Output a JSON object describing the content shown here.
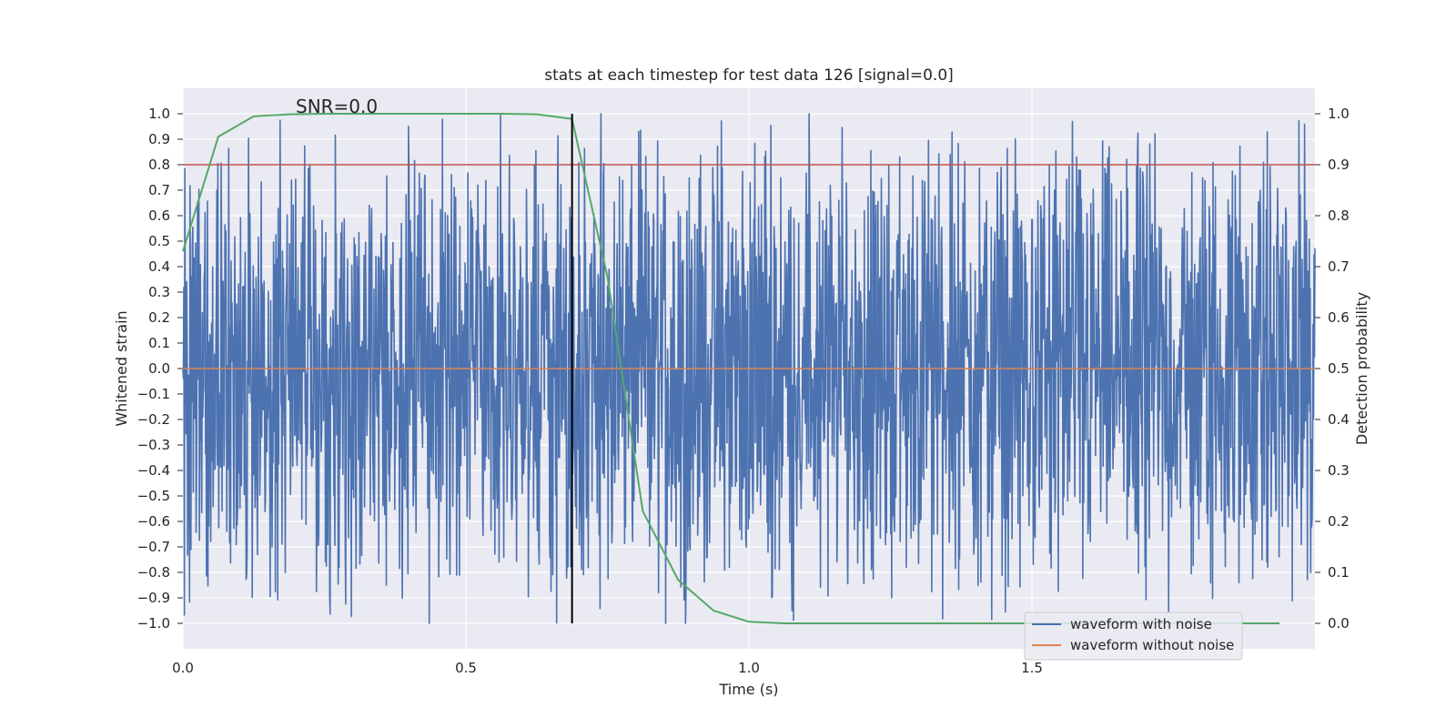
{
  "chart_data": {
    "type": "line",
    "title": "stats at each timestep for test data 126 [signal=0.0]",
    "annotation": "SNR=0.0",
    "xlabel": "Time (s)",
    "ylabel_left": "Whitened strain",
    "ylabel_right": "Detection probability",
    "xlim": [
      0.0,
      2.0
    ],
    "ylim_left": [
      -1.1,
      1.1
    ],
    "ylim_right": [
      -0.05,
      1.05
    ],
    "xticks": [
      "0.0",
      "0.5",
      "1.0",
      "1.5"
    ],
    "xtick_values": [
      0.0,
      0.5,
      1.0,
      1.5
    ],
    "yticks_left": [
      "1.0",
      "0.9",
      "0.8",
      "0.7",
      "0.6",
      "0.5",
      "0.4",
      "0.3",
      "0.2",
      "0.1",
      "0.0",
      "−0.1",
      "−0.2",
      "−0.3",
      "−0.4",
      "−0.5",
      "−0.6",
      "−0.7",
      "−0.8",
      "−0.9",
      "−1.0"
    ],
    "ytick_values_left": [
      1.0,
      0.9,
      0.8,
      0.7,
      0.6,
      0.5,
      0.4,
      0.3,
      0.2,
      0.1,
      0.0,
      -0.1,
      -0.2,
      -0.3,
      -0.4,
      -0.5,
      -0.6,
      -0.7,
      -0.8,
      -0.9,
      -1.0
    ],
    "yticks_right": [
      "1.0",
      "0.9",
      "0.8",
      "0.7",
      "0.6",
      "0.5",
      "0.4",
      "0.3",
      "0.2",
      "0.1",
      "0.0"
    ],
    "ytick_values_right": [
      1.0,
      0.9,
      0.8,
      0.7,
      0.6,
      0.5,
      0.4,
      0.3,
      0.2,
      0.1,
      0.0
    ],
    "grid": true,
    "legend_position": "bottom-right",
    "colors": {
      "noise": "#4c72b0",
      "clean": "#dd8452",
      "probability": "#55a868",
      "threshold": "#c44e52",
      "marker": "#000000",
      "plot_bg": "#eaeaf2",
      "grid": "#ffffff"
    },
    "series": [
      {
        "name": "waveform with noise",
        "axis": "left",
        "description_values": "whitened noise, roughly uniform in [-1, 1]",
        "time_range": [
          0.0,
          2.0
        ]
      },
      {
        "name": "waveform without noise",
        "axis": "left",
        "x": [
          0.0,
          2.0
        ],
        "values": [
          0.0,
          0.0
        ]
      },
      {
        "name": "detection probability",
        "axis": "right",
        "x": [
          0.0,
          0.0625,
          0.125,
          0.1875,
          0.25,
          0.3125,
          0.375,
          0.4375,
          0.5,
          0.5625,
          0.625,
          0.6875,
          0.75,
          0.8125,
          0.875,
          0.9375,
          1.0,
          1.0625,
          1.125,
          1.1875,
          1.25,
          1.3125,
          1.375,
          1.4375,
          1.5,
          1.5625,
          1.625,
          1.6875,
          1.75,
          1.8125,
          1.875,
          1.9375
        ],
        "values": [
          0.73,
          0.955,
          0.995,
          0.999,
          1.0,
          1.0,
          1.0,
          1.0,
          1.0,
          1.0,
          0.999,
          0.99,
          0.68,
          0.22,
          0.085,
          0.025,
          0.003,
          0.0,
          0.0,
          0.0,
          0.0,
          0.0,
          0.0,
          0.0,
          0.0,
          0.0,
          0.0,
          0.0,
          0.0,
          0.0,
          0.0,
          0.0
        ]
      },
      {
        "name": "threshold",
        "axis": "right",
        "values": [
          0.9
        ]
      },
      {
        "name": "marker",
        "axis": "x",
        "x": [
          0.6875
        ]
      }
    ],
    "legend": [
      "waveform with noise",
      "waveform without noise"
    ]
  }
}
